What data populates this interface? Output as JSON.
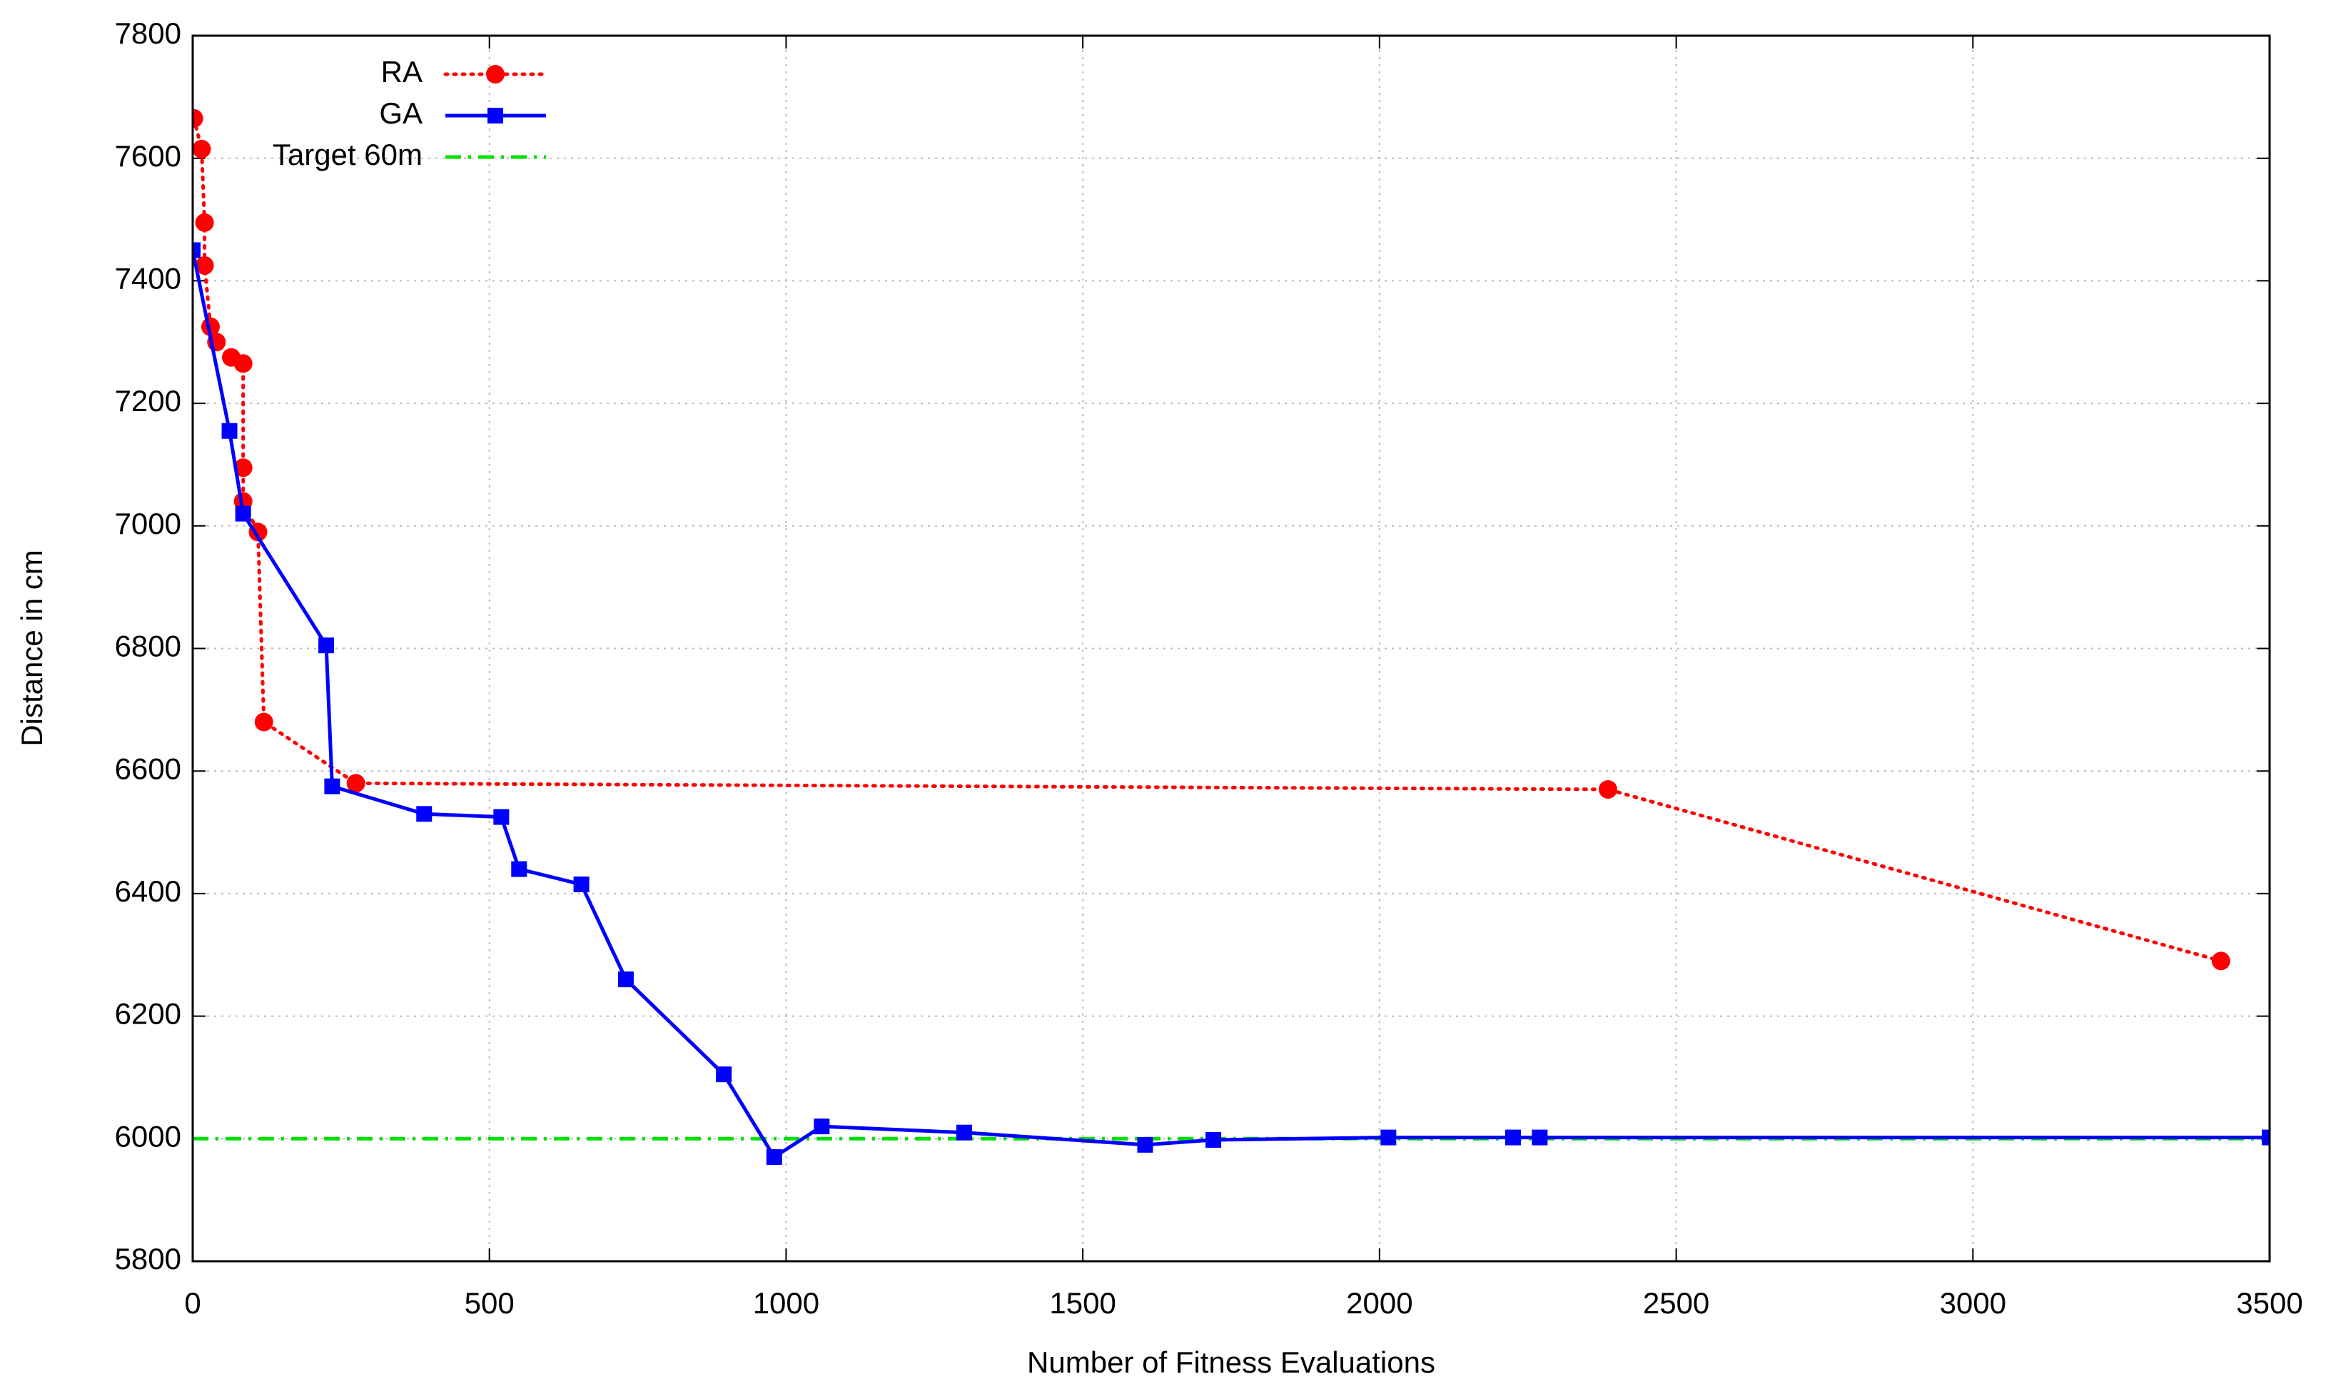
{
  "chart_data": {
    "type": "line",
    "xlabel": "Number of Fitness Evaluations",
    "ylabel": "Distance in cm",
    "xlim": [
      0,
      3500
    ],
    "ylim": [
      5800,
      7800
    ],
    "xticks": [
      0,
      500,
      1000,
      1500,
      2000,
      2500,
      3000,
      3500
    ],
    "yticks": [
      5800,
      6000,
      6200,
      6400,
      6600,
      6800,
      7000,
      7200,
      7400,
      7600,
      7800
    ],
    "grid": true,
    "legend": "upper left",
    "series": [
      {
        "name": "RA",
        "color": "#ff0000",
        "dash": "dotted",
        "marker": "circle",
        "x": [
          2,
          15,
          20,
          20,
          30,
          40,
          65,
          85,
          85,
          85,
          110,
          120,
          275,
          2385,
          3418
        ],
        "values": [
          7665,
          7615,
          7495,
          7425,
          7325,
          7300,
          7275,
          7265,
          7095,
          7040,
          6990,
          6680,
          6580,
          6570,
          6290
        ]
      },
      {
        "name": "GA",
        "color": "#0000ff",
        "dash": "solid",
        "marker": "square",
        "x": [
          0,
          62,
          85,
          225,
          235,
          390,
          520,
          550,
          655,
          730,
          895,
          980,
          1060,
          1300,
          1605,
          1720,
          2015,
          2225,
          2270,
          3500
        ],
        "values": [
          7450,
          7155,
          7020,
          6805,
          6575,
          6530,
          6525,
          6440,
          6415,
          6260,
          6105,
          5970,
          6020,
          6010,
          5990,
          5998,
          6002,
          6002,
          6002,
          6002
        ]
      },
      {
        "name": "Target 60m",
        "color": "#00e000",
        "dash": "dashdot",
        "marker": "none",
        "x": [
          0,
          3500
        ],
        "values": [
          6000,
          6000
        ]
      }
    ]
  }
}
